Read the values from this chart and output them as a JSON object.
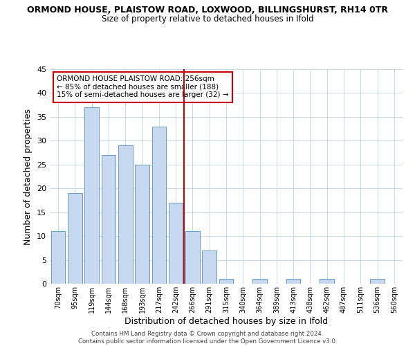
{
  "title1": "ORMOND HOUSE, PLAISTOW ROAD, LOXWOOD, BILLINGSHURST, RH14 0TR",
  "title2": "Size of property relative to detached houses in Ifold",
  "xlabel": "Distribution of detached houses by size in Ifold",
  "ylabel": "Number of detached properties",
  "categories": [
    "70sqm",
    "95sqm",
    "119sqm",
    "144sqm",
    "168sqm",
    "193sqm",
    "217sqm",
    "242sqm",
    "266sqm",
    "291sqm",
    "315sqm",
    "340sqm",
    "364sqm",
    "389sqm",
    "413sqm",
    "438sqm",
    "462sqm",
    "487sqm",
    "511sqm",
    "536sqm",
    "560sqm"
  ],
  "values": [
    11,
    19,
    37,
    27,
    29,
    25,
    33,
    17,
    11,
    7,
    1,
    0,
    1,
    0,
    1,
    0,
    1,
    0,
    0,
    1,
    0
  ],
  "bar_color": "#c6d9f0",
  "bar_edge_color": "#5b8db8",
  "ylim": [
    0,
    45
  ],
  "yticks": [
    0,
    5,
    10,
    15,
    20,
    25,
    30,
    35,
    40,
    45
  ],
  "vline_color": "#cc0000",
  "annotation_title": "ORMOND HOUSE PLAISTOW ROAD: 256sqm",
  "annotation_line1": "← 85% of detached houses are smaller (188)",
  "annotation_line2": "15% of semi-detached houses are larger (32) →",
  "annotation_box_edge_color": "#cc0000",
  "annotation_box_fill": "#ffffff",
  "footer1": "Contains HM Land Registry data © Crown copyright and database right 2024.",
  "footer2": "Contains public sector information licensed under the Open Government Licence v3.0.",
  "background_color": "#ffffff",
  "grid_color": "#c8d8e8"
}
